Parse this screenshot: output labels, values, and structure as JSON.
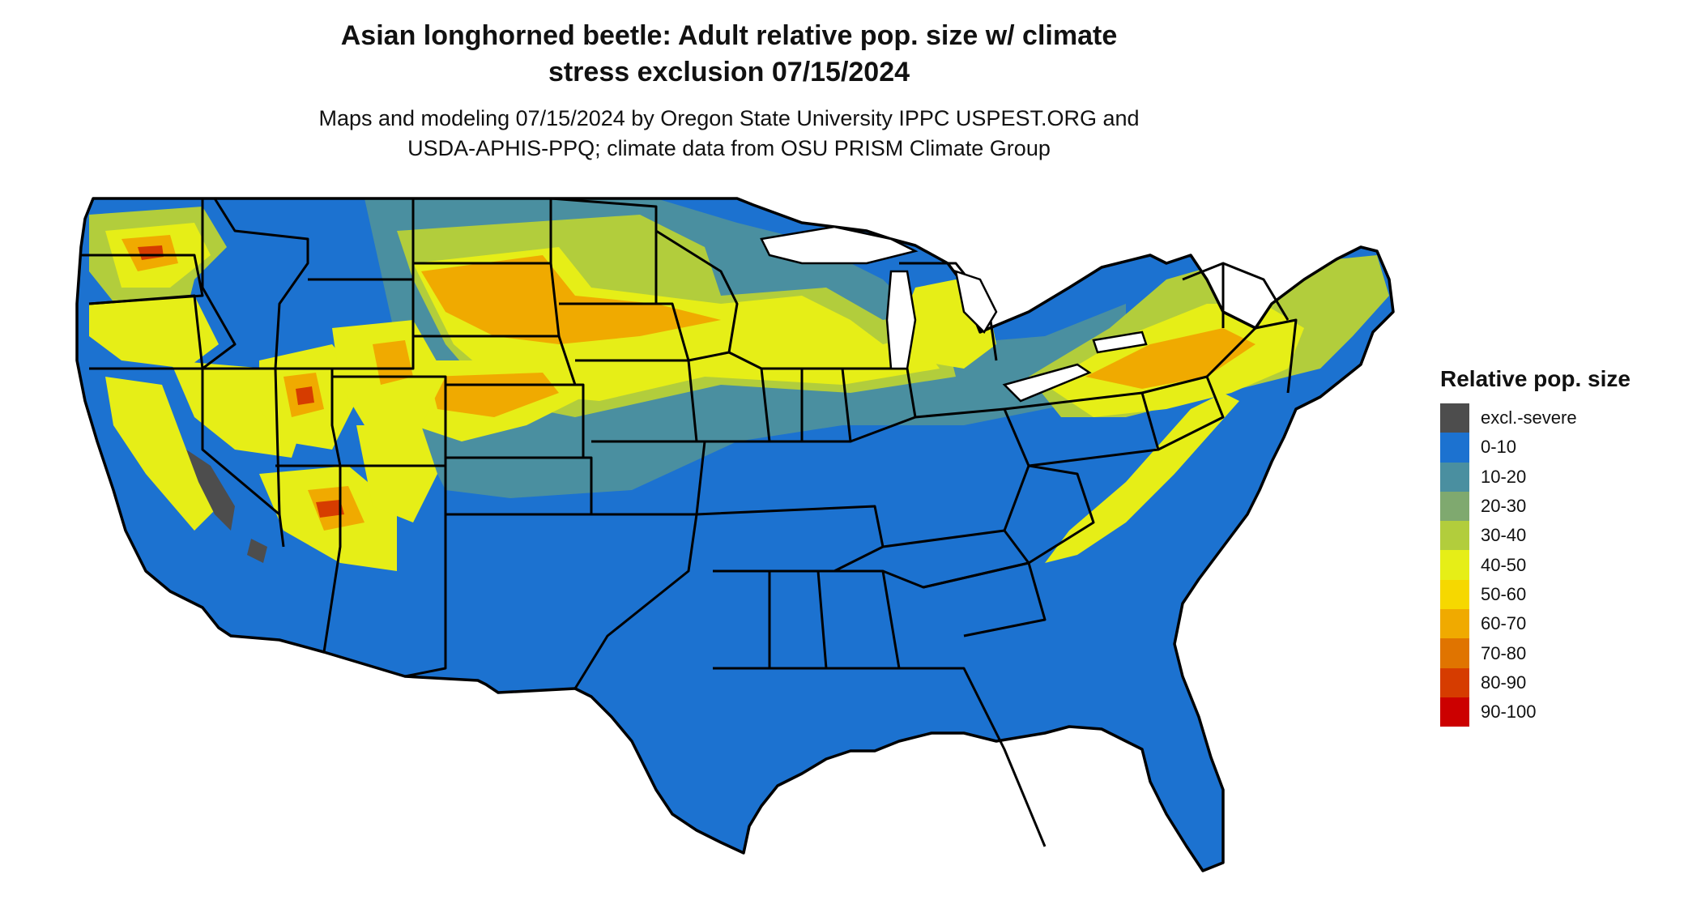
{
  "title": {
    "line1": "Asian longhorned beetle: Adult relative pop. size w/ climate",
    "line2": "stress exclusion 07/15/2024"
  },
  "subtitle": {
    "line1": "Maps and modeling 07/15/2024 by Oregon State University IPPC USPEST.ORG and",
    "line2": "USDA-APHIS-PPQ; climate data from OSU PRISM Climate Group"
  },
  "legend": {
    "title": "Relative pop. size",
    "items": [
      {
        "label": "excl.-severe",
        "color": "#4d4d4d"
      },
      {
        "label": "0-10",
        "color": "#1c72d0"
      },
      {
        "label": "10-20",
        "color": "#4a8fa0"
      },
      {
        "label": "20-30",
        "color": "#7fa96f"
      },
      {
        "label": "30-40",
        "color": "#b2cd3c"
      },
      {
        "label": "40-50",
        "color": "#e6ee17"
      },
      {
        "label": "50-60",
        "color": "#f6d800"
      },
      {
        "label": "60-70",
        "color": "#f0aa00"
      },
      {
        "label": "70-80",
        "color": "#e07400"
      },
      {
        "label": "80-90",
        "color": "#d63c00"
      },
      {
        "label": "90-100",
        "color": "#cc0000"
      }
    ]
  },
  "map": {
    "region": "Contiguous United States",
    "base_color": "#1c72d0",
    "border_color": "#000000"
  }
}
